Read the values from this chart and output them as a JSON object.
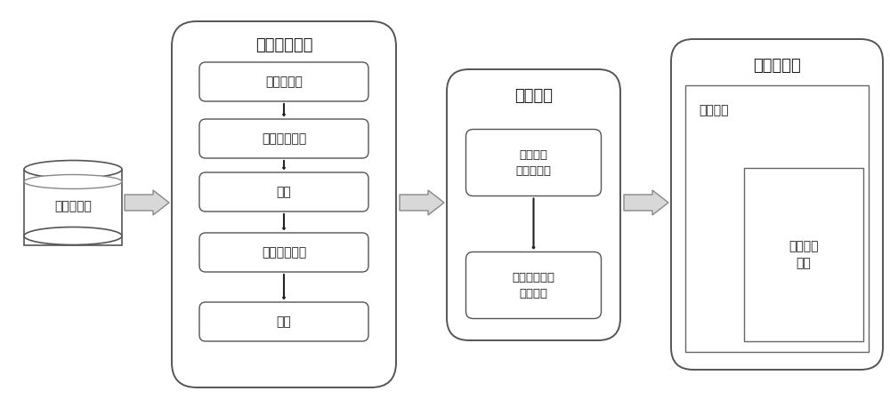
{
  "bg_color": "#ffffff",
  "text_color": "#1a1a1a",
  "box_edge_color": "#555555",
  "box_face_color": "#ffffff",
  "arrow_color": "#555555",
  "title": "",
  "db_label": "时序数据库",
  "section1_title": "自适应性分段",
  "section1_boxes": [
    "数据规范化",
    "数据平滑处理",
    "编码",
    "转折模式匹配",
    "分段"
  ],
  "section2_title": "因式分解",
  "section2_boxes": [
    "切比雪夫\n多项式分解",
    "分段切比雪夫\n近似表示"
  ],
  "section3_title": "最近邻分类",
  "section3_outer_label": "动态规划",
  "section3_inner_box": "局部模式\n匹配",
  "figw": 10.0,
  "figh": 4.58,
  "dpi": 100
}
